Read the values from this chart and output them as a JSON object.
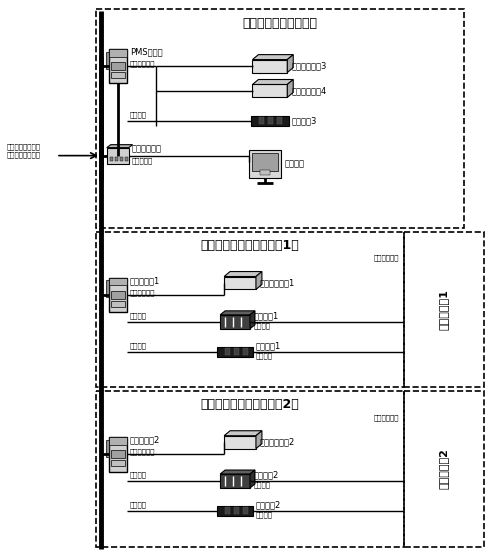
{
  "bg_color": "#ffffff",
  "figsize": [
    4.93,
    5.58
  ],
  "dpi": 100,
  "title_font": 9,
  "label_font": 6,
  "small_font": 5,
  "panel1_title": "中压配电板（母联屏）",
  "panel2_title": "中压配电板（机组控制屏1）",
  "panel3_title": "中压配电板（机组控制屏2）",
  "pms_label": "PMS控制器",
  "fieldbus": "现场总线通信",
  "hardwire": "硬线信号",
  "ethernet_sw": "以太网交换机",
  "ethernet_comm": "以太网通信",
  "dv3": "电量变送装置3",
  "dv4": "电量变送装置4",
  "relay3": "继电器组3",
  "hmi": "人机界面",
  "ctrl1": "机组控制器1",
  "dv1": "电量变送装置1",
  "sw1": "并车装置1",
  "relay1": "继电器组1",
  "hardline_out1a": "现线信号",
  "hardline_out1b": "现线信号",
  "ctrl2": "机组控制器2",
  "dv2": "电量变送装置2",
  "sw2": "并车装置2",
  "relay2": "继电器组2",
  "hardline_out2a": "现线信号",
  "hardline_out2b": "现线信号",
  "sidebox1": "机旁控制箱1",
  "sidebox2": "机旁控制箱2",
  "left_text": "通过以太网与其他\n电站共享数据信息"
}
